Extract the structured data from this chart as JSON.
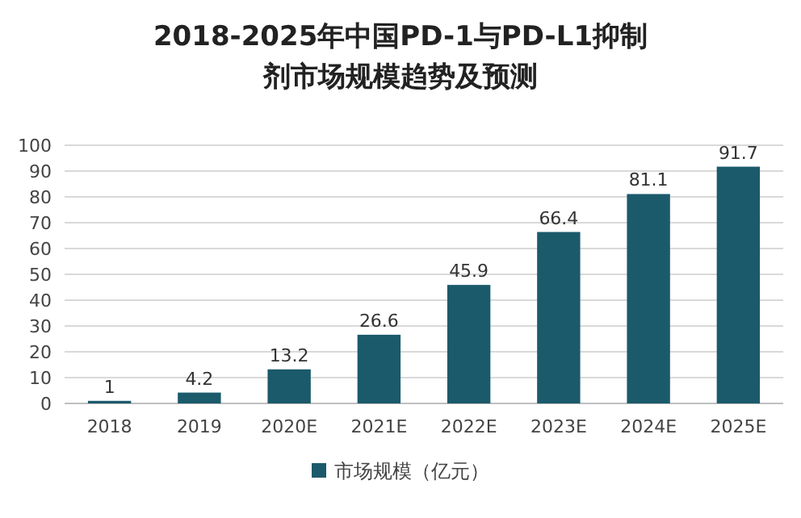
{
  "chart_data": {
    "type": "bar",
    "title": "2018-2025年中国PD-1与PD-L1抑制剂市场规模趋势及预测",
    "categories": [
      "2018",
      "2019",
      "2020E",
      "2021E",
      "2022E",
      "2023E",
      "2024E",
      "2025E"
    ],
    "series": [
      {
        "name": "市场规模（亿元）",
        "color": "#1b5a6b",
        "values": [
          1,
          4.2,
          13.2,
          26.6,
          45.9,
          66.4,
          81.1,
          91.7
        ]
      }
    ],
    "ylim": [
      0,
      100
    ],
    "yticks": [
      0,
      10,
      20,
      30,
      40,
      50,
      60,
      70,
      80,
      90,
      100
    ],
    "grid": "y",
    "legend": "bottom",
    "data_labels": true
  }
}
